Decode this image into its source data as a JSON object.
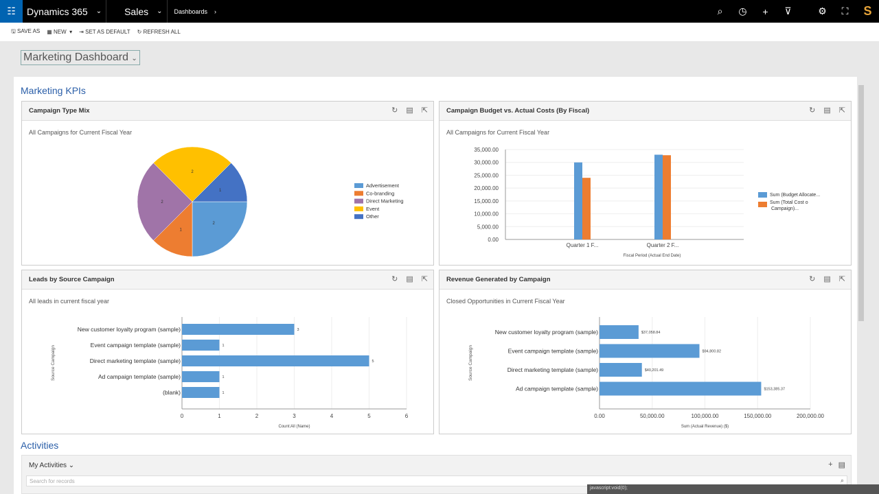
{
  "topbar": {
    "app": "Dynamics 365",
    "module": "Sales",
    "area": "Dashboards",
    "icons": [
      "search-icon",
      "history-icon",
      "plus-icon",
      "filter-icon",
      "gear-icon",
      "assistant-icon",
      "user-avatar"
    ]
  },
  "commands": {
    "save_as": "SAVE AS",
    "new": "NEW",
    "set_default": "SET AS DEFAULT",
    "refresh_all": "REFRESH ALL"
  },
  "dashboard": {
    "title": "Marketing Dashboard"
  },
  "sections": {
    "kpis": "Marketing KPIs",
    "activities": "Activities"
  },
  "colors": {
    "blue": "#5b9bd5",
    "orange": "#ed7d31",
    "purple": "#a074a8",
    "yellow": "#ffc000",
    "darkblue": "#4472c4"
  },
  "panels": [
    {
      "title": "Campaign Type Mix",
      "subtitle": "All Campaigns for Current Fiscal Year"
    },
    {
      "title": "Campaign Budget vs. Actual Costs (By Fiscal)",
      "subtitle": "All Campaigns for Current Fiscal Year"
    },
    {
      "title": "Leads by Source Campaign",
      "subtitle": "All leads in current fiscal year"
    },
    {
      "title": "Revenue Generated by Campaign",
      "subtitle": "Closed Opportunities in Current Fiscal Year"
    }
  ],
  "chart_data": [
    {
      "type": "pie",
      "categories": [
        "Advertisement",
        "Co-branding",
        "Direct Marketing",
        "Event",
        "Other"
      ],
      "values": [
        2,
        1,
        2,
        2,
        1
      ],
      "colors": [
        "#5b9bd5",
        "#ed7d31",
        "#a074a8",
        "#ffc000",
        "#4472c4"
      ],
      "legend": "right"
    },
    {
      "type": "bar",
      "categories": [
        "Quarter 1 F...",
        "Quarter 2 F..."
      ],
      "series": [
        {
          "name": "Sum (Budget Allocate...",
          "values": [
            30000,
            33000
          ],
          "color": "#5b9bd5"
        },
        {
          "name": "Sum (Total Cost of Campaign)...",
          "values": [
            24000,
            32800
          ],
          "color": "#ed7d31"
        }
      ],
      "xlabel": "Fiscal Period (Actual End Date)",
      "ylim": [
        0,
        35000
      ],
      "yticks": [
        "0.00",
        "5,000.00",
        "10,000.00",
        "15,000.00",
        "20,000.00",
        "25,000.00",
        "30,000.00",
        "35,000.00"
      ],
      "legend": "right",
      "grid": true
    },
    {
      "type": "bar",
      "orientation": "horizontal",
      "categories": [
        "New customer loyalty program (sample)",
        "Event campaign template (sample)",
        "Direct marketing template (sample)",
        "Ad campaign template (sample)",
        "(blank)"
      ],
      "values": [
        3,
        1,
        5,
        1,
        1
      ],
      "labels": [
        "3",
        "1",
        "5",
        "1",
        "1"
      ],
      "xlabel": "Count:All (Name)",
      "ylabel": "Source Campaign",
      "xlim": [
        0,
        6
      ],
      "xticks": [
        "0",
        "1",
        "2",
        "3",
        "4",
        "5",
        "6"
      ],
      "grid": true
    },
    {
      "type": "bar",
      "orientation": "horizontal",
      "categories": [
        "New customer loyalty program (sample)",
        "Event campaign template (sample)",
        "Direct marketing template (sample)",
        "Ad campaign template (sample)"
      ],
      "values": [
        37058.84,
        94800.82,
        40201.49,
        153385.37
      ],
      "labels": [
        "$37,058.84",
        "$94,800.82",
        "$40,201.49",
        "$153,385.37"
      ],
      "xlabel": "Sum (Actual Revenue) ($)",
      "ylabel": "Source Campaign",
      "xlim": [
        0,
        200000
      ],
      "xticks": [
        "0.00",
        "50,000.00",
        "100,000.00",
        "150,000.00",
        "200,000.00"
      ],
      "grid": true
    }
  ],
  "activities": {
    "view": "My Activities",
    "search_placeholder": "Search for records"
  },
  "status": "javascript:void(0);"
}
